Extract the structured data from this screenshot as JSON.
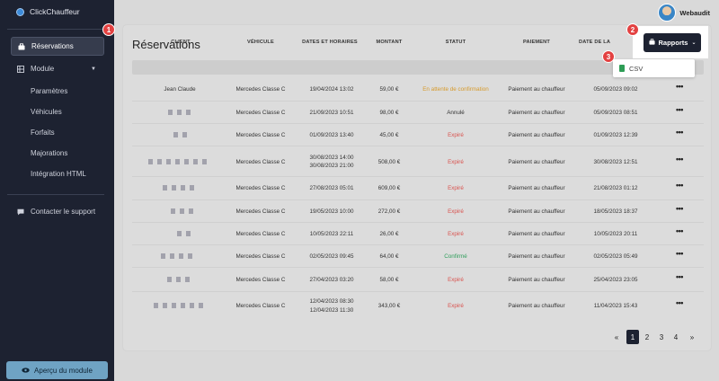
{
  "app": {
    "name": "ClickChauffeur"
  },
  "sidebar": {
    "items": [
      {
        "label": "Réservations"
      },
      {
        "label": "Module"
      },
      {
        "label": "Paramètres"
      },
      {
        "label": "Véhicules"
      },
      {
        "label": "Forfaits"
      },
      {
        "label": "Majorations"
      },
      {
        "label": "Intégration HTML"
      },
      {
        "label": "Contacter le support"
      }
    ],
    "preview_button": "Aperçu du module"
  },
  "user": {
    "name": "Webaudit"
  },
  "page": {
    "title": "Réservations"
  },
  "reports": {
    "button": "Rapports",
    "options": [
      "CSV"
    ]
  },
  "markers": [
    "1",
    "2",
    "3"
  ],
  "table": {
    "columns": [
      "CLIENT",
      "VÉHICULE",
      "DATES ET HORAIRES",
      "MONTANT",
      "STATUT",
      "PAIEMENT",
      "DATE DE LA"
    ],
    "rows": [
      {
        "client": "Jean Claude",
        "vehicle": "Mercedes Classe C",
        "dates": [
          "19/04/2024 13:02"
        ],
        "amount": "59,00 €",
        "status": "En attente de confirmation",
        "status_kind": "wait",
        "payment": "Paiement au chauffeur",
        "created": "05/09/2023 09:02"
      },
      {
        "client": "",
        "vehicle": "Mercedes Classe C",
        "dates": [
          "21/09/2023 10:51"
        ],
        "amount": "98,00 €",
        "status": "Annulé",
        "status_kind": "cancel",
        "payment": "Paiement au chauffeur",
        "created": "05/09/2023 08:51"
      },
      {
        "client": "",
        "vehicle": "Mercedes Classe C",
        "dates": [
          "01/09/2023 13:40"
        ],
        "amount": "45,00 €",
        "status": "Expiré",
        "status_kind": "exp",
        "payment": "Paiement au chauffeur",
        "created": "01/09/2023 12:39"
      },
      {
        "client": "",
        "vehicle": "Mercedes Classe C",
        "dates": [
          "30/08/2023 14:00",
          "30/08/2023 21:00"
        ],
        "amount": "508,00 €",
        "status": "Expiré",
        "status_kind": "exp",
        "payment": "Paiement au chauffeur",
        "created": "30/08/2023 12:51"
      },
      {
        "client": "",
        "vehicle": "Mercedes Classe C",
        "dates": [
          "27/08/2023 05:01"
        ],
        "amount": "609,00 €",
        "status": "Expiré",
        "status_kind": "exp",
        "payment": "Paiement au chauffeur",
        "created": "21/08/2023 01:12"
      },
      {
        "client": "",
        "vehicle": "Mercedes Classe C",
        "dates": [
          "19/05/2023 10:00"
        ],
        "amount": "272,00 €",
        "status": "Expiré",
        "status_kind": "exp",
        "payment": "Paiement au chauffeur",
        "created": "18/05/2023 18:37"
      },
      {
        "client": "",
        "vehicle": "Mercedes Classe C",
        "dates": [
          "10/05/2023 22:11"
        ],
        "amount": "26,00 €",
        "status": "Expiré",
        "status_kind": "exp",
        "payment": "Paiement au chauffeur",
        "created": "10/05/2023 20:11"
      },
      {
        "client": "",
        "vehicle": "Mercedes Classe C",
        "dates": [
          "02/05/2023 09:45"
        ],
        "amount": "64,00 €",
        "status": "Confirmé",
        "status_kind": "ok",
        "payment": "Paiement au chauffeur",
        "created": "02/05/2023 05:49"
      },
      {
        "client": "",
        "vehicle": "Mercedes Classe C",
        "dates": [
          "27/04/2023 03:20"
        ],
        "amount": "58,00 €",
        "status": "Expiré",
        "status_kind": "exp",
        "payment": "Paiement au chauffeur",
        "created": "25/04/2023 23:05"
      },
      {
        "client": "",
        "vehicle": "Mercedes Classe C",
        "dates": [
          "12/04/2023 08:30",
          "12/04/2023 11:30"
        ],
        "amount": "343,00 €",
        "status": "Expiré",
        "status_kind": "exp",
        "payment": "Paiement au chauffeur",
        "created": "11/04/2023 15:43"
      }
    ],
    "row_action": "•••"
  },
  "pagination": {
    "prev": "«",
    "pages": [
      "1",
      "2",
      "3",
      "4"
    ],
    "current": "1",
    "next": "»"
  },
  "colors": {
    "sidebar": "#1d2231",
    "accent_button": "#1d2231",
    "expired": "#d9534f",
    "confirmed": "#2f9e5b",
    "pending": "#d69a2b",
    "marker": "#e34141"
  }
}
